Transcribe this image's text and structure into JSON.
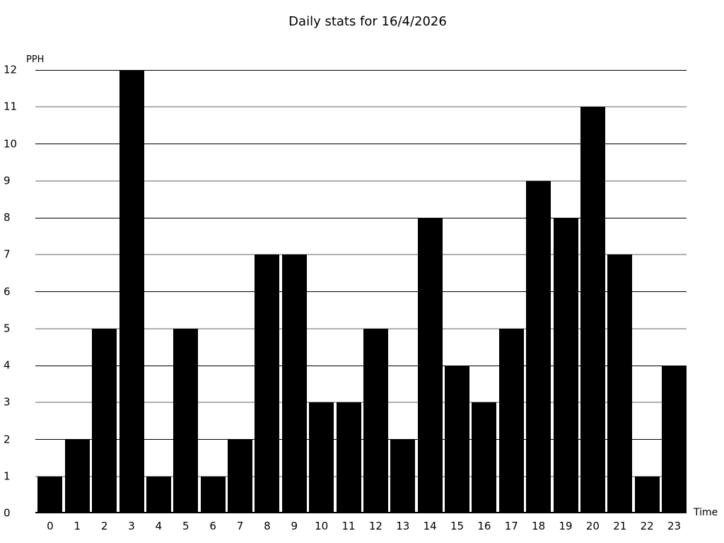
{
  "chart_data": {
    "type": "bar",
    "title": "Daily stats for 16/4/2026",
    "xlabel": "Time",
    "ylabel": "PPH",
    "categories": [
      "0",
      "1",
      "2",
      "3",
      "4",
      "5",
      "6",
      "7",
      "8",
      "9",
      "10",
      "11",
      "12",
      "13",
      "14",
      "15",
      "16",
      "17",
      "18",
      "19",
      "20",
      "21",
      "22",
      "23"
    ],
    "values": [
      1,
      2,
      5,
      12,
      1,
      5,
      1,
      2,
      7,
      7,
      3,
      3,
      5,
      2,
      8,
      4,
      3,
      5,
      9,
      8,
      11,
      7,
      1,
      4
    ],
    "ylim": [
      0,
      12
    ],
    "ytick_step": 1,
    "grid": true,
    "legend": false,
    "colors": {
      "bar": "#000000",
      "grid_even": "#000000",
      "grid_odd": "#b0b0b0",
      "axis": "#000000",
      "background": "#ffffff",
      "text": "#000000"
    }
  }
}
